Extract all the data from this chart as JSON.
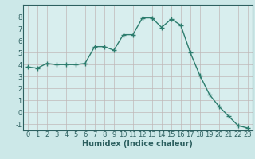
{
  "x": [
    0,
    1,
    2,
    3,
    4,
    5,
    6,
    7,
    8,
    9,
    10,
    11,
    12,
    13,
    14,
    15,
    16,
    17,
    18,
    19,
    20,
    21,
    22,
    23
  ],
  "y": [
    3.8,
    3.7,
    4.1,
    4.0,
    4.0,
    4.0,
    4.1,
    5.5,
    5.5,
    5.2,
    6.5,
    6.5,
    7.9,
    7.9,
    7.1,
    7.8,
    7.3,
    5.0,
    3.1,
    1.5,
    0.5,
    -0.3,
    -1.1,
    -1.3
  ],
  "line_color": "#2d7d6e",
  "marker": "+",
  "marker_size": 4,
  "bg_color": "#cce8e8",
  "plot_bg_color": "#d8eeee",
  "grid_color": "#c0b8b8",
  "xlabel": "Humidex (Indice chaleur)",
  "xlim": [
    -0.5,
    23.5
  ],
  "ylim": [
    -1.5,
    9.0
  ],
  "yticks": [
    -1,
    0,
    1,
    2,
    3,
    4,
    5,
    6,
    7,
    8
  ],
  "xticks": [
    0,
    1,
    2,
    3,
    4,
    5,
    6,
    7,
    8,
    9,
    10,
    11,
    12,
    13,
    14,
    15,
    16,
    17,
    18,
    19,
    20,
    21,
    22,
    23
  ],
  "tick_label_fontsize": 6,
  "xlabel_fontsize": 7,
  "axis_color": "#2d6060",
  "linewidth": 1.0,
  "marker_linewidth": 1.0
}
